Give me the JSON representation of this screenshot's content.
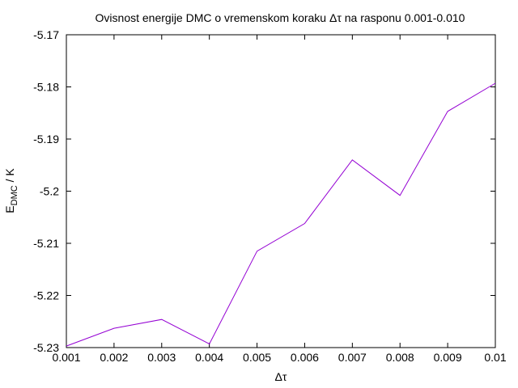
{
  "chart_data": {
    "type": "line",
    "title": "Ovisnost energije DMC o vremenskom koraku Δτ na rasponu 0.001-0.010",
    "xlabel": "Δτ",
    "ylabel_main": "E",
    "ylabel_sub": "DMC",
    "ylabel_rest": " / K",
    "xlim": [
      0.001,
      0.01
    ],
    "ylim": [
      -5.23,
      -5.17
    ],
    "x_ticks": [
      0.001,
      0.002,
      0.003,
      0.004,
      0.005,
      0.006,
      0.007,
      0.008,
      0.009,
      0.01
    ],
    "x_tick_labels": [
      "0.001",
      "0.002",
      "0.003",
      "0.004",
      "0.005",
      "0.006",
      "0.007",
      "0.008",
      "0.009",
      "0.01"
    ],
    "y_ticks": [
      -5.17,
      -5.18,
      -5.19,
      -5.2,
      -5.21,
      -5.22,
      -5.23
    ],
    "y_tick_labels": [
      "-5.17",
      "-5.18",
      "-5.19",
      "-5.2",
      "-5.21",
      "-5.22",
      "-5.23"
    ],
    "grid": false,
    "series": [
      {
        "color": "#9400d3",
        "x": [
          0.001,
          0.002,
          0.003,
          0.004,
          0.005,
          0.006,
          0.007,
          0.008,
          0.009,
          0.01
        ],
        "y": [
          -5.2297,
          -5.2263,
          -5.2246,
          -5.2293,
          -5.2115,
          -5.2062,
          -5.194,
          -5.2008,
          -5.1847,
          -5.1793
        ]
      }
    ]
  }
}
